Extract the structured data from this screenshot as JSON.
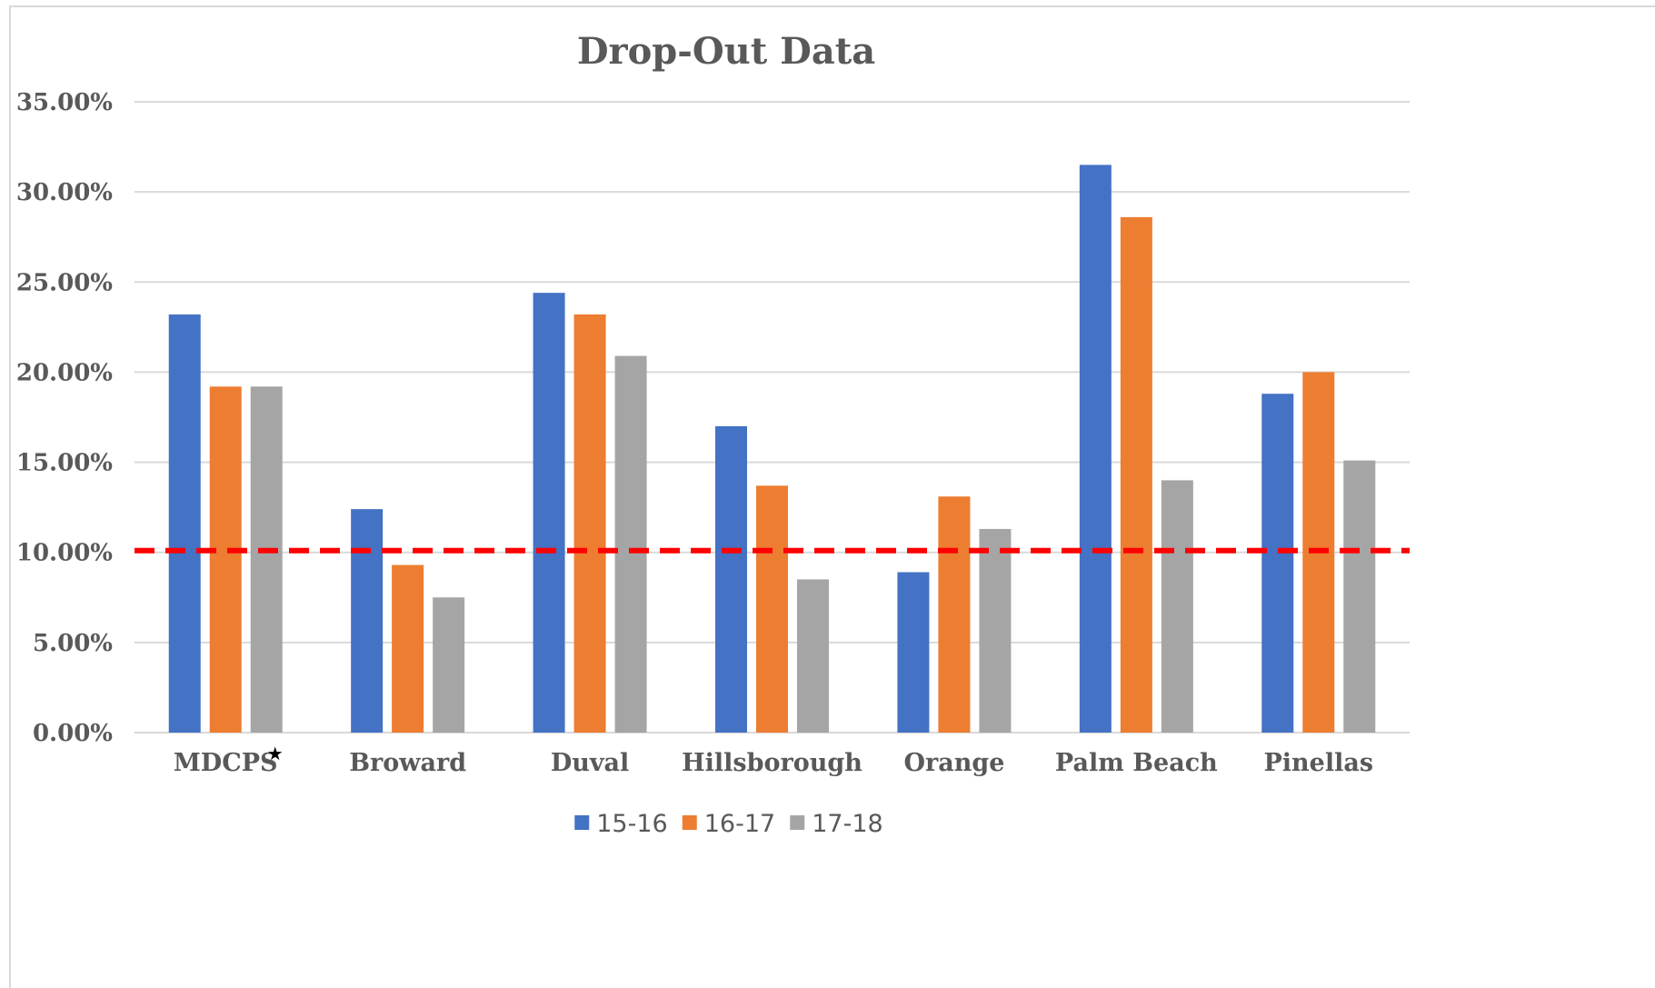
{
  "chart_data": {
    "type": "bar",
    "title": "Drop-Out Data",
    "xlabel": "",
    "ylabel": "",
    "categories": [
      "MDCPS",
      "Broward",
      "Duval",
      "Hillsborough",
      "Orange",
      "Palm Beach",
      "Pinellas"
    ],
    "category_marker": {
      "category": "MDCPS",
      "symbol": "★"
    },
    "series": [
      {
        "name": "15-16",
        "color": "#4472c4",
        "values": [
          23.2,
          12.4,
          24.4,
          17.0,
          8.9,
          31.5,
          18.8
        ]
      },
      {
        "name": "16-17",
        "color": "#ed7d31",
        "values": [
          19.2,
          9.3,
          23.2,
          13.7,
          13.1,
          28.6,
          20.0
        ]
      },
      {
        "name": "17-18",
        "color": "#a5a5a5",
        "values": [
          19.2,
          7.5,
          20.9,
          8.5,
          11.3,
          14.0,
          15.1
        ]
      }
    ],
    "ylim": [
      0,
      35
    ],
    "yticks": [
      0,
      5,
      10,
      15,
      20,
      25,
      30,
      35
    ],
    "ytick_labels": [
      "0.00%",
      "5.00%",
      "10.00%",
      "15.00%",
      "20.00%",
      "25.00%",
      "30.00%",
      "35.00%"
    ],
    "reference_line": {
      "value": 10.1,
      "color": "#ff0000",
      "style": "dashed"
    },
    "grid": true,
    "legend": "bottom-center",
    "colors": {
      "gridline": "#d9d9d9",
      "text": "#595959"
    }
  }
}
